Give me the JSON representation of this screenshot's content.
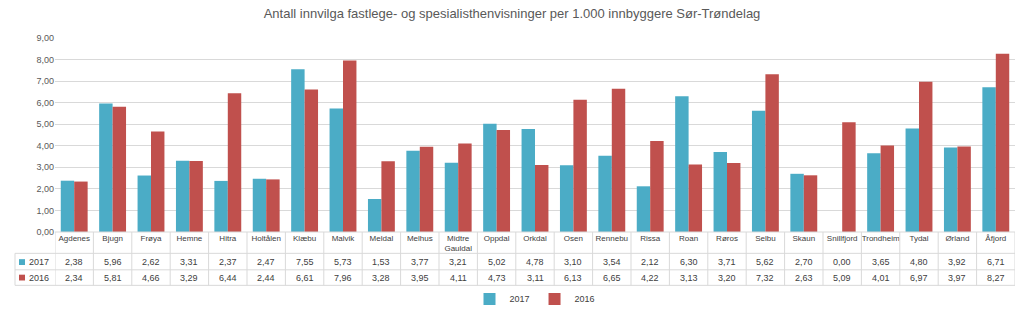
{
  "chart_data": {
    "type": "bar",
    "title": "Antall innvilga fastlege- og spesialisthenvisninger per 1.000 innbyggere Sør-Trøndelag",
    "categories": [
      "Agdenes",
      "Bjugn",
      "Frøya",
      "Hemne",
      "Hitra",
      "Holtålen",
      "Klæbu",
      "Malvik",
      "Meldal",
      "Melhus",
      "Midtre Gauldal",
      "Oppdal",
      "Orkdal",
      "Osen",
      "Rennebu",
      "Rissa",
      "Roan",
      "Røros",
      "Selbu",
      "Skaun",
      "Snillfjord",
      "Trondheim",
      "Tydal",
      "Ørland",
      "Åfjord"
    ],
    "series": [
      {
        "name": "2017",
        "color": "#4bacc6",
        "values": [
          2.38,
          5.96,
          2.62,
          3.31,
          2.37,
          2.47,
          7.55,
          5.73,
          1.53,
          3.77,
          3.21,
          5.02,
          4.78,
          3.1,
          3.54,
          2.12,
          6.3,
          3.71,
          5.62,
          2.7,
          0.0,
          3.65,
          4.8,
          3.92,
          6.71
        ],
        "value_labels": [
          "2,38",
          "5,96",
          "2,62",
          "3,31",
          "2,37",
          "2,47",
          "7,55",
          "5,73",
          "1,53",
          "3,77",
          "3,21",
          "5,02",
          "4,78",
          "3,10",
          "3,54",
          "2,12",
          "6,30",
          "3,71",
          "5,62",
          "2,70",
          "0,00",
          "3,65",
          "4,80",
          "3,92",
          "6,71"
        ]
      },
      {
        "name": "2016",
        "color": "#c0504d",
        "values": [
          2.34,
          5.81,
          4.66,
          3.29,
          6.44,
          2.44,
          6.61,
          7.96,
          3.28,
          3.95,
          4.11,
          4.73,
          3.11,
          6.13,
          6.65,
          4.22,
          3.13,
          3.2,
          7.32,
          2.63,
          5.09,
          4.01,
          6.97,
          3.97,
          8.27
        ],
        "value_labels": [
          "2,34",
          "5,81",
          "4,66",
          "3,29",
          "6,44",
          "2,44",
          "6,61",
          "7,96",
          "3,28",
          "3,95",
          "4,11",
          "4,73",
          "3,11",
          "6,13",
          "6,65",
          "4,22",
          "3,13",
          "3,20",
          "7,32",
          "2,63",
          "5,09",
          "4,01",
          "6,97",
          "3,97",
          "8,27"
        ]
      }
    ],
    "ylim": [
      0,
      9
    ],
    "yticks": [
      {
        "value": 0,
        "label": "0,00"
      },
      {
        "value": 1,
        "label": "1,00"
      },
      {
        "value": 2,
        "label": "2,00"
      },
      {
        "value": 3,
        "label": "3,00"
      },
      {
        "value": 4,
        "label": "4,00"
      },
      {
        "value": 5,
        "label": "5,00"
      },
      {
        "value": 6,
        "label": "6,00"
      },
      {
        "value": 7,
        "label": "7,00"
      },
      {
        "value": 8,
        "label": "8,00"
      },
      {
        "value": 9,
        "label": "9,00"
      }
    ],
    "grid": true,
    "legend": "bottom"
  }
}
